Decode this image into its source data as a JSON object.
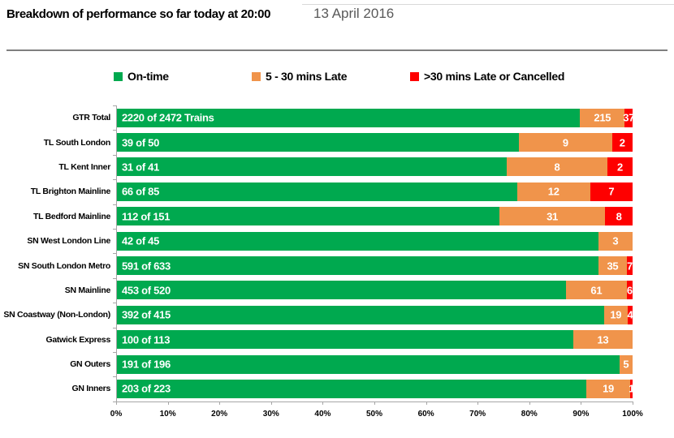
{
  "header": {
    "title": "Breakdown of performance so far today at 20:00",
    "date": "13 April 2016"
  },
  "legend": {
    "items": [
      {
        "label": "On-time",
        "color": "#00A94F"
      },
      {
        "label": "5 - 30 mins Late",
        "color": "#F0944B"
      },
      {
        "label": ">30 mins Late or Cancelled",
        "color": "#FE0000"
      }
    ]
  },
  "colors": {
    "on_time": "#00A94F",
    "late_5_30": "#F0944B",
    "late_30_cancelled": "#FE0000",
    "axis_line": "#A6A6A6",
    "bar_label_text": "#FFFFFF",
    "date_text": "#595959"
  },
  "chart_data": {
    "type": "bar",
    "orientation": "horizontal-stacked",
    "title": "Breakdown of performance so far today at 20:00",
    "subtitle": "13 April 2016",
    "xlabel": "",
    "ylabel": "",
    "xlim": [
      0,
      100
    ],
    "x_ticks": [
      "0%",
      "10%",
      "20%",
      "30%",
      "40%",
      "50%",
      "60%",
      "70%",
      "80%",
      "90%",
      "100%"
    ],
    "grid": false,
    "legend_position": "top",
    "categories": [
      "GTR Total",
      "TL South London",
      "TL Kent Inner",
      "TL Brighton Mainline",
      "TL Bedford Mainline",
      "SN West London Line",
      "SN South London Metro",
      "SN Mainline",
      "SN Coastway (Non-London)",
      "Gatwick Express",
      "GN Outers",
      "GN Inners"
    ],
    "totals": [
      2472,
      50,
      41,
      85,
      151,
      45,
      633,
      520,
      415,
      113,
      196,
      223
    ],
    "series": [
      {
        "name": "On-time",
        "color": "#00A94F",
        "values": [
          2220,
          39,
          31,
          66,
          112,
          42,
          591,
          453,
          392,
          100,
          191,
          203
        ],
        "labels": [
          "2220 of 2472 Trains",
          "39 of 50",
          "31 of 41",
          "66 of 85",
          "112 of 151",
          "42 of 45",
          "591 of 633",
          "453 of 520",
          "392 of 415",
          "100 of 113",
          "191 of 196",
          "203 of 223"
        ]
      },
      {
        "name": "5 - 30 mins Late",
        "color": "#F0944B",
        "values": [
          215,
          9,
          8,
          12,
          31,
          3,
          35,
          61,
          19,
          13,
          5,
          19
        ]
      },
      {
        "name": ">30 mins Late or Cancelled",
        "color": "#FE0000",
        "values": [
          37,
          2,
          2,
          7,
          8,
          0,
          7,
          6,
          4,
          0,
          0,
          1
        ]
      }
    ]
  }
}
